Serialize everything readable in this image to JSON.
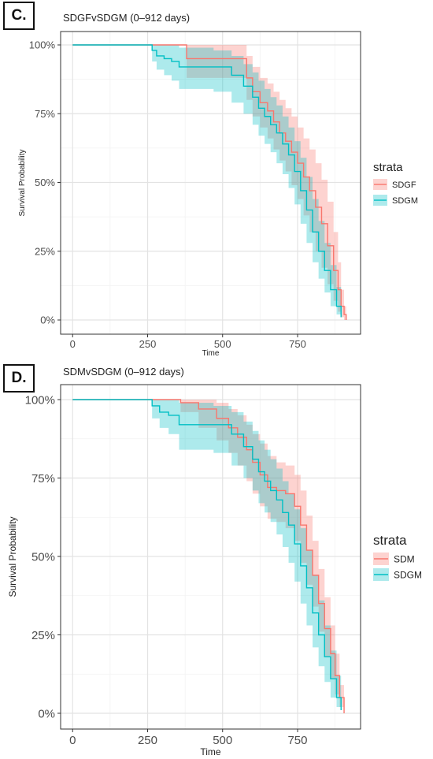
{
  "panels": [
    {
      "label": "C.",
      "title": "SDGFvSDGM (0–912 days)"
    },
    {
      "label": "D.",
      "title": "SDMvSDGM (0–912 days)"
    }
  ],
  "chart_data": [
    {
      "type": "line",
      "title": "SDGFvSDGM (0–912 days)",
      "xlabel": "Time",
      "ylabel": "Survival Probability",
      "xlim": [
        -40,
        960
      ],
      "ylim": [
        0,
        100
      ],
      "x_ticks": [
        "0",
        "250",
        "500",
        "750"
      ],
      "y_ticks": [
        "0%",
        "25%",
        "50%",
        "75%",
        "100%"
      ],
      "grid": true,
      "legend": {
        "title": "strata",
        "position": "right"
      },
      "colors": {
        "SDGF": "#F8766D",
        "SDGM": "#00BFC4"
      },
      "series": [
        {
          "name": "SDGF",
          "x": [
            0,
            380,
            580,
            600,
            625,
            650,
            670,
            690,
            710,
            730,
            750,
            770,
            790,
            810,
            830,
            850,
            870,
            885,
            895,
            905,
            912
          ],
          "y": [
            100,
            95,
            88,
            83,
            79,
            76,
            72,
            68,
            65,
            61,
            57,
            52,
            47,
            41,
            35,
            27,
            18,
            11,
            5,
            2,
            0
          ],
          "lower": [
            100,
            88,
            80,
            74,
            70,
            66,
            62,
            58,
            54,
            49,
            44,
            38,
            32,
            25,
            19,
            13,
            7,
            3,
            1,
            0,
            0
          ],
          "upper": [
            100,
            100,
            96,
            92,
            88,
            86,
            83,
            80,
            77,
            74,
            70,
            66,
            62,
            57,
            51,
            43,
            32,
            21,
            11,
            5,
            2
          ]
        },
        {
          "name": "SDGM",
          "x": [
            0,
            265,
            280,
            305,
            330,
            355,
            400,
            470,
            530,
            570,
            600,
            620,
            640,
            660,
            680,
            700,
            720,
            740,
            760,
            780,
            800,
            820,
            840,
            860,
            880,
            895
          ],
          "y": [
            100,
            98,
            96,
            95,
            94,
            92,
            92,
            92,
            89,
            85,
            81,
            77,
            74,
            71,
            68,
            64,
            60,
            54,
            47,
            40,
            32,
            25,
            18,
            11,
            5,
            1
          ],
          "lower": [
            100,
            94,
            91,
            89,
            87,
            84,
            84,
            83,
            79,
            75,
            71,
            67,
            64,
            61,
            57,
            53,
            48,
            42,
            35,
            28,
            21,
            15,
            10,
            5,
            2,
            0
          ],
          "upper": [
            100,
            100,
            100,
            100,
            100,
            99,
            99,
            98,
            96,
            93,
            90,
            87,
            84,
            81,
            78,
            74,
            70,
            65,
            59,
            52,
            44,
            36,
            28,
            20,
            12,
            5
          ]
        }
      ]
    },
    {
      "type": "line",
      "title": "SDMvSDGM (0–912 days)",
      "xlabel": "Time",
      "ylabel": "Survival Probability",
      "xlim": [
        -40,
        960
      ],
      "ylim": [
        0,
        100
      ],
      "x_ticks": [
        "0",
        "250",
        "500",
        "750"
      ],
      "y_ticks": [
        "0%",
        "25%",
        "50%",
        "75%",
        "100%"
      ],
      "grid": true,
      "legend": {
        "title": "strata",
        "position": "right"
      },
      "colors": {
        "SDM": "#F8766D",
        "SDGM": "#00BFC4"
      },
      "series": [
        {
          "name": "SDM",
          "x": [
            0,
            360,
            420,
            480,
            520,
            550,
            580,
            600,
            625,
            650,
            680,
            710,
            740,
            760,
            780,
            800,
            820,
            840,
            860,
            875,
            890,
            905
          ],
          "y": [
            100,
            99,
            97,
            94,
            91,
            88,
            84,
            80,
            76,
            72,
            71,
            70,
            66,
            60,
            52,
            44,
            35,
            27,
            19,
            12,
            5,
            0
          ],
          "lower": [
            100,
            96,
            91,
            87,
            83,
            79,
            74,
            70,
            66,
            62,
            61,
            59,
            55,
            48,
            41,
            34,
            26,
            18,
            11,
            6,
            2,
            0
          ],
          "upper": [
            100,
            100,
            100,
            99,
            97,
            95,
            92,
            89,
            86,
            82,
            80,
            79,
            76,
            71,
            63,
            55,
            46,
            37,
            28,
            19,
            9,
            3
          ]
        },
        {
          "name": "SDGM",
          "x": [
            0,
            265,
            290,
            320,
            355,
            400,
            470,
            530,
            570,
            600,
            620,
            640,
            660,
            680,
            700,
            720,
            740,
            760,
            780,
            800,
            820,
            840,
            860,
            880,
            895
          ],
          "y": [
            100,
            98,
            96,
            95,
            92,
            92,
            92,
            89,
            85,
            81,
            77,
            74,
            71,
            68,
            64,
            60,
            54,
            47,
            40,
            32,
            25,
            18,
            11,
            5,
            1
          ],
          "lower": [
            100,
            94,
            91,
            89,
            84,
            84,
            83,
            79,
            75,
            71,
            67,
            64,
            61,
            57,
            53,
            48,
            42,
            35,
            28,
            21,
            15,
            10,
            5,
            2,
            0
          ],
          "upper": [
            100,
            100,
            100,
            100,
            99,
            99,
            98,
            96,
            93,
            90,
            87,
            84,
            81,
            78,
            74,
            70,
            65,
            59,
            52,
            44,
            36,
            28,
            20,
            12,
            5
          ]
        }
      ]
    }
  ]
}
